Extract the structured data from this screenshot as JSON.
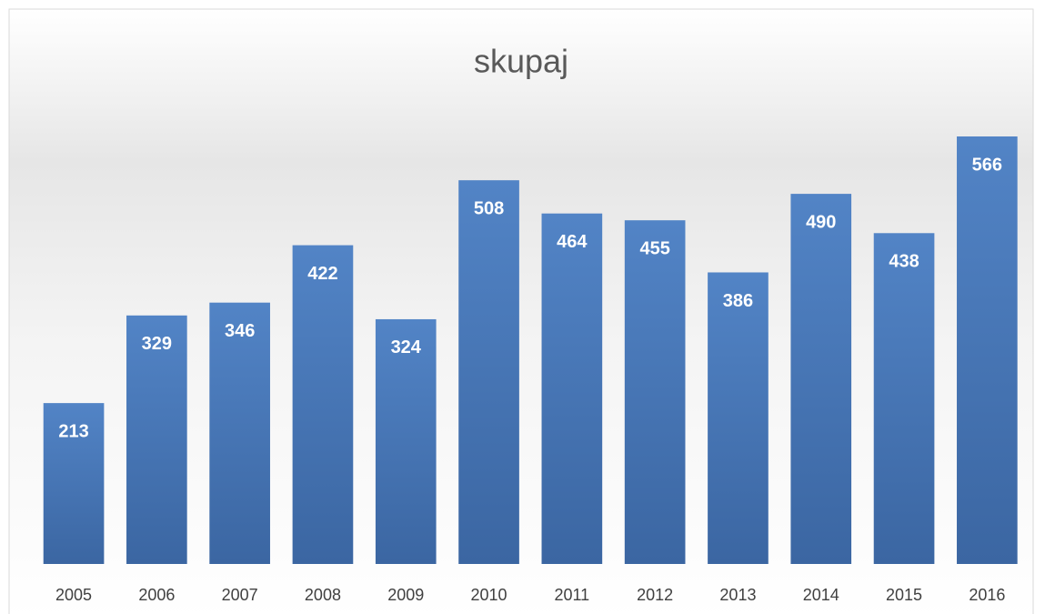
{
  "chart_data": {
    "type": "bar",
    "title": "skupaj",
    "categories": [
      "2005",
      "2006",
      "2007",
      "2008",
      "2009",
      "2010",
      "2011",
      "2012",
      "2013",
      "2014",
      "2015",
      "2016"
    ],
    "values": [
      213,
      329,
      346,
      422,
      324,
      508,
      464,
      455,
      386,
      490,
      438,
      566
    ],
    "color": "#4a78b8"
  }
}
